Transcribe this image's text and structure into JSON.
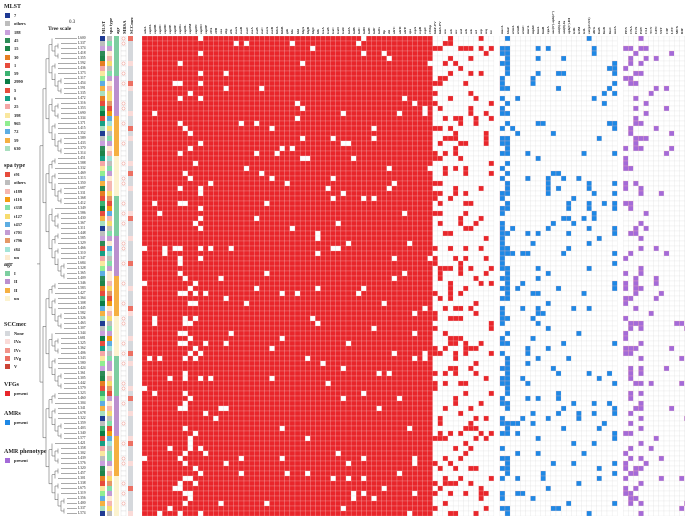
{
  "legend": {
    "mlst": {
      "title": "MLST",
      "items": [
        {
          "label": "7",
          "color": "#1f3a93"
        },
        {
          "label": "others",
          "color": "#bdbdbd"
        },
        {
          "label": "188",
          "color": "#c9a0dc"
        },
        {
          "label": "45",
          "color": "#2e8b57"
        },
        {
          "label": "15",
          "color": "#1e8449"
        },
        {
          "label": "30",
          "color": "#e67e22"
        },
        {
          "label": "1",
          "color": "#e74c3c"
        },
        {
          "label": "59",
          "color": "#3cb371"
        },
        {
          "label": "2990",
          "color": "#0a7d46"
        },
        {
          "label": "5",
          "color": "#e74c3c"
        },
        {
          "label": "6",
          "color": "#16a085"
        },
        {
          "label": "25",
          "color": "#f4a6a6"
        },
        {
          "label": "398",
          "color": "#f9e79f"
        },
        {
          "label": "965",
          "color": "#90ee90"
        },
        {
          "label": "72",
          "color": "#5dade2"
        },
        {
          "label": "59",
          "color": "#f5b041"
        },
        {
          "label": "630",
          "color": "#a9dfbf"
        }
      ]
    },
    "spa": {
      "title": "spa type",
      "items": [
        {
          "label": "t91",
          "color": "#e74c3c"
        },
        {
          "label": "others",
          "color": "#bdbdbd"
        },
        {
          "label": "t189",
          "color": "#f5b7b1"
        },
        {
          "label": "t116",
          "color": "#f39c12"
        },
        {
          "label": "t338",
          "color": "#82e0aa"
        },
        {
          "label": "t127",
          "color": "#f7dc6f"
        },
        {
          "label": "t437",
          "color": "#5dade2"
        },
        {
          "label": "t701",
          "color": "#c39bd3"
        },
        {
          "label": "t796",
          "color": "#e59866"
        },
        {
          "label": "t84",
          "color": "#a3e4d7"
        },
        {
          "label": "un",
          "color": "#fdebd0"
        }
      ]
    },
    "agr": {
      "title": "agr",
      "items": [
        {
          "label": "I",
          "color": "#7dcea0"
        },
        {
          "label": "II",
          "color": "#bb8fce"
        },
        {
          "label": "II",
          "color": "#f5b041"
        },
        {
          "label": "un",
          "color": "#fcf3cf"
        }
      ]
    },
    "sccmec": {
      "title": "SCCmec",
      "items": [
        {
          "label": "None",
          "color": "#d5d8dc"
        },
        {
          "label": "IVa",
          "color": "#fadbd8"
        },
        {
          "label": "IVc",
          "color": "#f1948a"
        },
        {
          "label": "IVg",
          "color": "#ec7063"
        },
        {
          "label": "V",
          "color": "#cb4335"
        }
      ]
    },
    "vfgs": {
      "title": "VFGs",
      "items": [
        {
          "label": "present",
          "color": "#e8262b"
        }
      ]
    },
    "amrs": {
      "title": "AMRs",
      "items": [
        {
          "label": "present",
          "color": "#1e88e5"
        }
      ]
    },
    "amrp": {
      "title": "AMR phenotype",
      "items": [
        {
          "label": "present",
          "color": "#a46ad8"
        }
      ]
    }
  },
  "tree_scale": {
    "label": "Tree scale",
    "value": "0.3"
  },
  "meta_headers": [
    "MLST",
    "spa type",
    "agr",
    "MRSA",
    "SCCmec"
  ],
  "colors": {
    "vfg": "#e8262b",
    "amr": "#1e88e5",
    "pheno": "#a46ad8",
    "empty": "#ffffff",
    "grid": "#dddddd"
  },
  "vfg_genes": [
    "adsA",
    "cap8A",
    "cap8B",
    "cap8C",
    "cap8D",
    "cap8E",
    "cap8F",
    "cap8G",
    "cap8L",
    "cap8M",
    "cap8N",
    "cap8O",
    "cap8P",
    "clfA",
    "clfB",
    "coa",
    "ebp",
    "efb",
    "esaA",
    "esaB",
    "esaC",
    "essA",
    "essB",
    "essC",
    "esxA",
    "esxB",
    "fnbA",
    "fnbB",
    "geh",
    "hla",
    "hld",
    "hlgA",
    "hlgB",
    "hlgC",
    "hlb",
    "icaA",
    "icaB",
    "icaC",
    "icaD",
    "icaR",
    "isdA",
    "isdB",
    "isdC",
    "isdD",
    "isdE",
    "isdF",
    "isdG",
    "lip",
    "sbi",
    "sdrC",
    "sdrD",
    "sdrE",
    "spa",
    "sspA",
    "sspB",
    "sspC",
    "vWbp",
    "lukF-PV",
    "lukS-PV",
    "sea",
    "seb",
    "sec",
    "sed",
    "seh",
    "sek",
    "sel",
    "sep",
    "seq",
    "tst"
  ],
  "amr_genes": [
    "mecA",
    "blaZ",
    "ermA",
    "ermB",
    "ermC",
    "msrA",
    "mphC",
    "lnuA",
    "lnuB",
    "vgaA",
    "aac(6')-aph(2'')",
    "ant(6)-Ia",
    "ant(9)-Ia",
    "aph(3')-III",
    "tetK",
    "tetM",
    "tetL",
    "cat(pC221)",
    "dfrG",
    "fosB",
    "fusB",
    "fusC",
    "norA"
  ],
  "amr_phenotypes": [
    "PEN",
    "OXA",
    "FOX",
    "ERY",
    "CLI",
    "TCY",
    "GEN",
    "SXT",
    "CIP",
    "LEV",
    "MFX",
    "RIF",
    "TEC",
    "VAN",
    "LZD"
  ],
  "strain_count": 96
}
